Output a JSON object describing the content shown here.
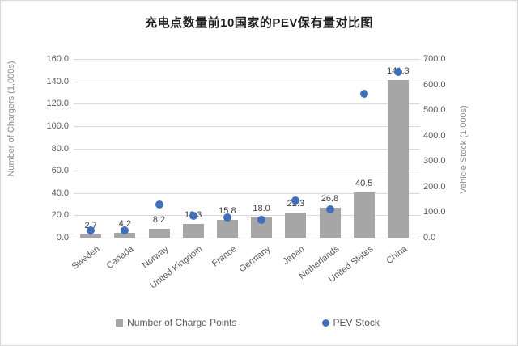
{
  "title": "充电点数量前10国家的PEV保有量对比图",
  "chart_data": {
    "type": "combo-bar-scatter",
    "categories": [
      "Sweden",
      "Canada",
      "Norway",
      "United Kingdom",
      "France",
      "Germany",
      "Japan",
      "Netherlands",
      "United States",
      "China"
    ],
    "series": [
      {
        "name": "Number of Charge Points",
        "type": "bar",
        "axis": "left",
        "color": "#a6a6a6",
        "values": [
          2.7,
          4.2,
          8.2,
          12.3,
          15.8,
          18.0,
          22.3,
          26.8,
          40.5,
          141.3
        ],
        "labels": [
          "2.7",
          "4.2",
          "8.2",
          "12.3",
          "15.8",
          "18.0",
          "22.3",
          "26.8",
          "40.5",
          "141.3"
        ]
      },
      {
        "name": "PEV Stock",
        "type": "scatter",
        "axis": "right",
        "color": "#4070bc",
        "values": [
          28,
          28,
          131,
          84,
          78,
          71,
          145,
          110,
          565,
          648
        ]
      }
    ],
    "left_axis": {
      "title": "Number of Chargers (1,000s)",
      "min": 0,
      "max": 160,
      "step": 20,
      "tick_labels": [
        "0.0",
        "20.0",
        "40.0",
        "60.0",
        "80.0",
        "100.0",
        "120.0",
        "140.0",
        "160.0"
      ]
    },
    "right_axis": {
      "title": "Vehicle Stock (1,000s)",
      "min": 0,
      "max": 700,
      "step": 100,
      "tick_labels": [
        "0.0",
        "100.0",
        "200.0",
        "300.0",
        "400.0",
        "500.0",
        "600.0",
        "700.0"
      ]
    },
    "grid": true,
    "legend_position": "bottom",
    "colors": {
      "bar": "#a6a6a6",
      "point": "#4070bc",
      "gridline": "#d9d9d9",
      "axis_text": "#595959",
      "data_label": "#404040"
    }
  }
}
